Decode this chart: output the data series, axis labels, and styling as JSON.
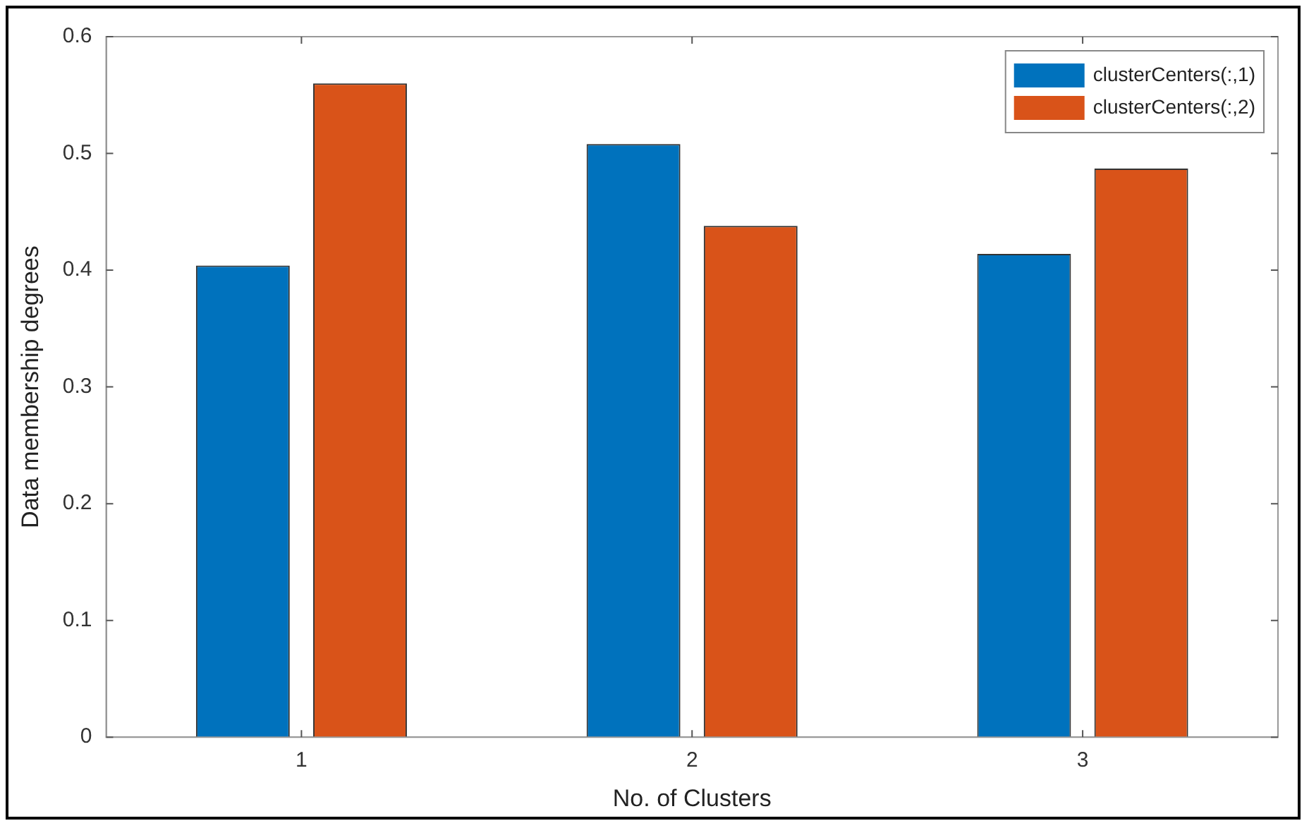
{
  "chart_data": {
    "type": "bar",
    "xlabel": "No. of Clusters",
    "ylabel": "Data membership degrees",
    "categories": [
      "1",
      "2",
      "3"
    ],
    "series": [
      {
        "name": "clusterCenters(:,1)",
        "color": "#0072bd",
        "values": [
          0.404,
          0.508,
          0.414
        ]
      },
      {
        "name": "clusterCenters(:,2)",
        "color": "#d95319",
        "values": [
          0.56,
          0.438,
          0.487
        ]
      }
    ],
    "ylim": [
      0,
      0.6
    ],
    "yticks": [
      0,
      0.1,
      0.2,
      0.3,
      0.4,
      0.5,
      0.6
    ],
    "grid": false,
    "legend": "top right"
  }
}
